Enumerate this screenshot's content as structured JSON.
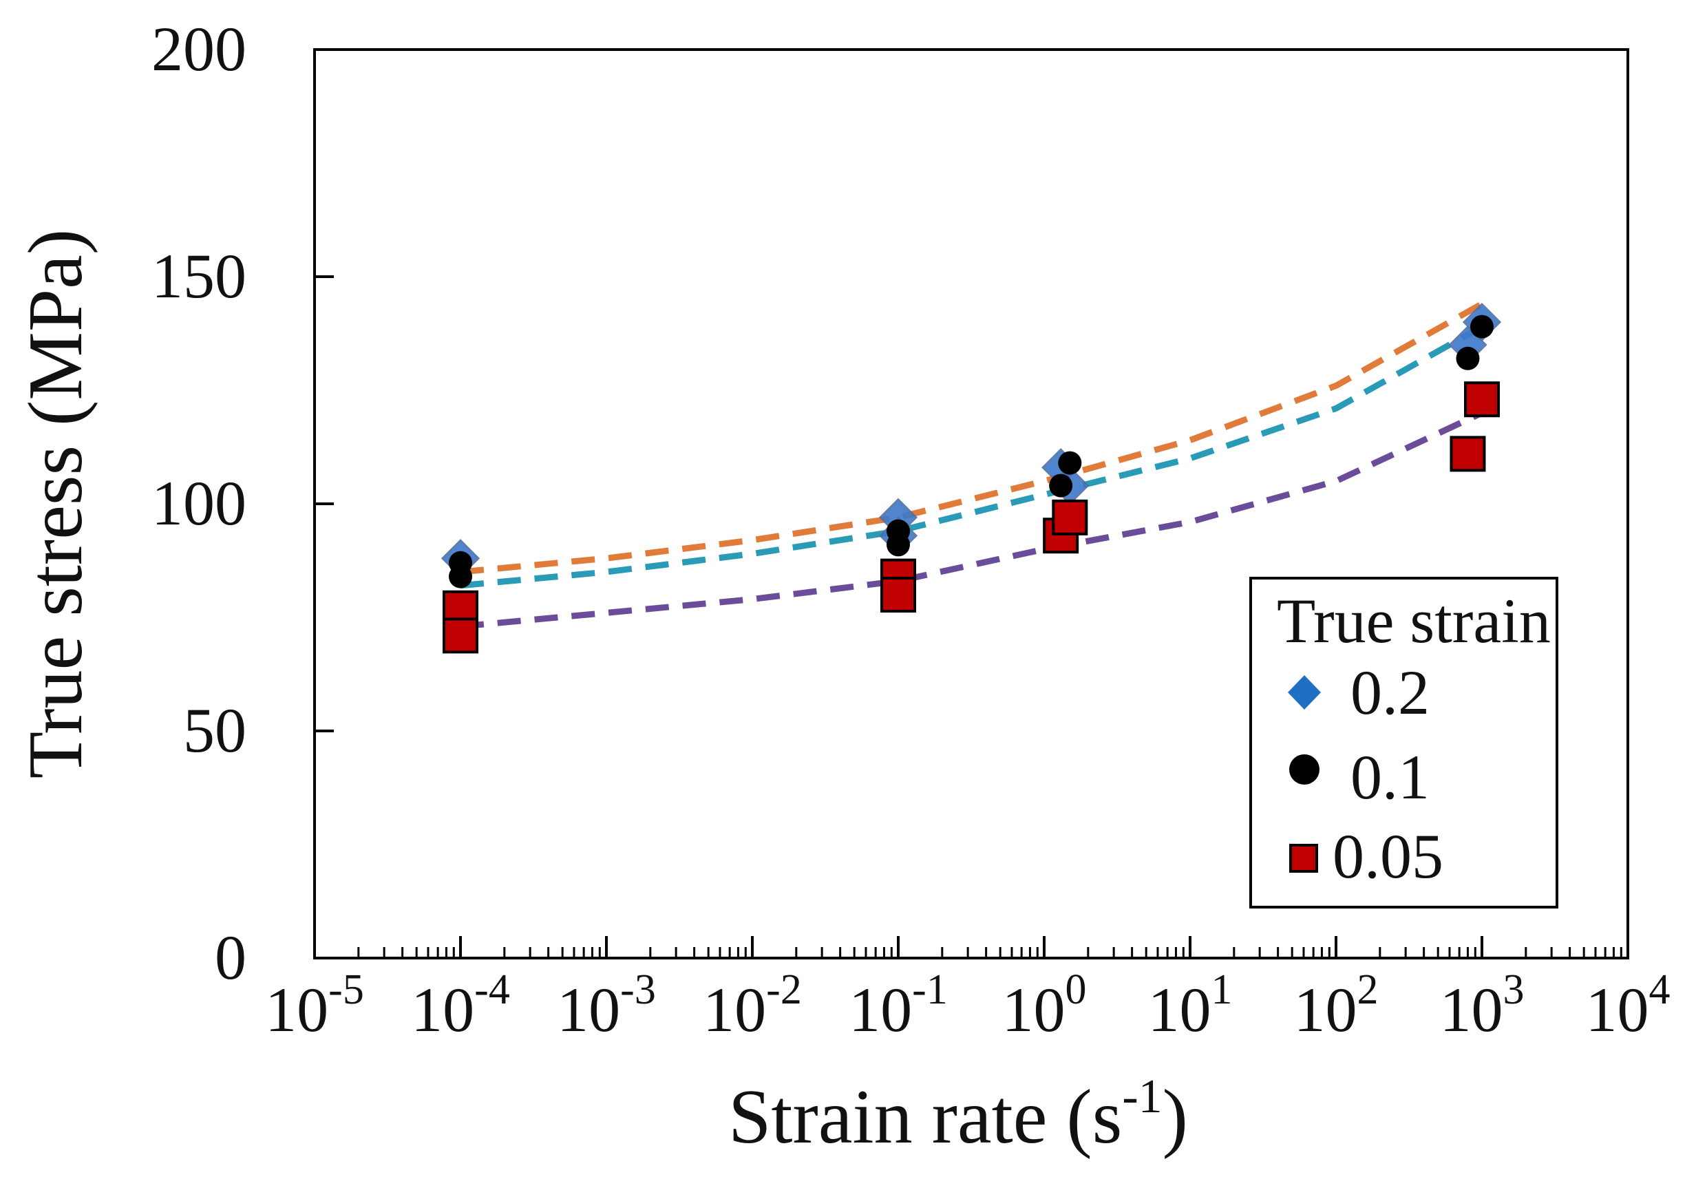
{
  "chart_data": {
    "type": "scatter",
    "title": "",
    "xlabel": "Strain rate (s",
    "xlabel_sup": "-1",
    "xlabel_end": ")",
    "ylabel": "True  stress (MPa)",
    "xscale": "log",
    "xlim": [
      -5,
      4
    ],
    "ylim": [
      0,
      200
    ],
    "x_ticks": [
      {
        "base": "10",
        "exp": "-5"
      },
      {
        "base": "10",
        "exp": "-4"
      },
      {
        "base": "10",
        "exp": "-3"
      },
      {
        "base": "10",
        "exp": "-2"
      },
      {
        "base": "10",
        "exp": "-1"
      },
      {
        "base": "10",
        "exp": "0"
      },
      {
        "base": "10",
        "exp": "1"
      },
      {
        "base": "10",
        "exp": "2"
      },
      {
        "base": "10",
        "exp": "3"
      },
      {
        "base": "10",
        "exp": "4"
      }
    ],
    "y_ticks": [
      "0",
      "50",
      "100",
      "150",
      "200"
    ],
    "grid": false,
    "legend": {
      "title": "True strain",
      "position": "bottom-right",
      "entries": [
        "0.2",
        "0.1",
        "0.05"
      ]
    },
    "series": [
      {
        "name": "0.2",
        "marker": "diamond",
        "color": "#1f6fc5",
        "points": [
          {
            "x": 0.0001,
            "y": 88
          },
          {
            "x": 0.1,
            "y": 97
          },
          {
            "x": 0.1,
            "y": 93
          },
          {
            "x": 1.3,
            "y": 108
          },
          {
            "x": 1.5,
            "y": 104
          },
          {
            "x": 800,
            "y": 135
          },
          {
            "x": 1000,
            "y": 140
          }
        ]
      },
      {
        "name": "0.1",
        "marker": "circle",
        "color": "#000000",
        "points": [
          {
            "x": 0.0001,
            "y": 87
          },
          {
            "x": 0.0001,
            "y": 84
          },
          {
            "x": 0.1,
            "y": 94
          },
          {
            "x": 0.1,
            "y": 91
          },
          {
            "x": 1.3,
            "y": 104
          },
          {
            "x": 1.5,
            "y": 109
          },
          {
            "x": 800,
            "y": 132
          },
          {
            "x": 1000,
            "y": 139
          }
        ]
      },
      {
        "name": "0.05",
        "marker": "square",
        "color": "#c00000",
        "points": [
          {
            "x": 0.0001,
            "y": 77
          },
          {
            "x": 0.0001,
            "y": 71
          },
          {
            "x": 0.1,
            "y": 84
          },
          {
            "x": 0.1,
            "y": 80
          },
          {
            "x": 1.3,
            "y": 93
          },
          {
            "x": 1.5,
            "y": 97
          },
          {
            "x": 800,
            "y": 111
          },
          {
            "x": 1000,
            "y": 123
          }
        ]
      }
    ],
    "fits": [
      {
        "name": "fit-0.2",
        "color": "#e07b39",
        "x": [
          0.0001,
          0.001,
          0.01,
          0.1,
          1,
          10,
          100,
          1000
        ],
        "y": [
          85,
          88,
          92,
          97,
          105,
          114,
          126,
          144
        ]
      },
      {
        "name": "fit-0.1",
        "color": "#2a9bb6",
        "x": [
          0.0001,
          0.001,
          0.01,
          0.1,
          1,
          10,
          100,
          1000
        ],
        "y": [
          82,
          85,
          89,
          94,
          102,
          110,
          121,
          139
        ]
      },
      {
        "name": "fit-0.05",
        "color": "#6b4c9a",
        "x": [
          0.0001,
          0.001,
          0.01,
          0.1,
          1,
          10,
          100,
          1000
        ],
        "y": [
          73,
          76,
          79,
          83,
          90,
          96,
          105,
          120
        ]
      }
    ]
  }
}
